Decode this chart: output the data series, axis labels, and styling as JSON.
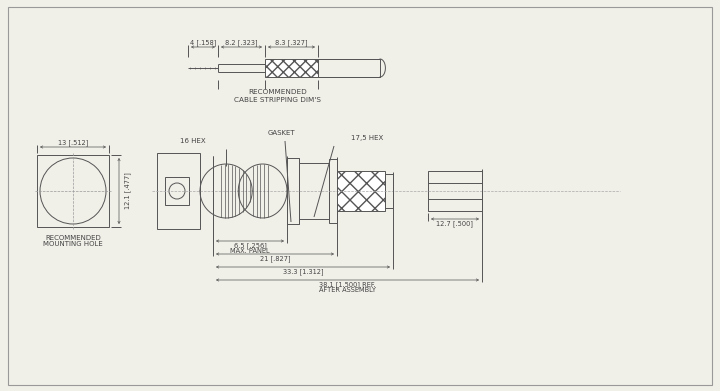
{
  "bg_color": "#f0efe8",
  "line_color": "#555555",
  "text_color": "#444444",
  "border_color": "#aaaaaa",
  "cable_strip": {
    "dim1": "4 [.158]",
    "dim2": "8.2 [.323]",
    "dim3": "8.3 [.327]",
    "label": "RECOMMENDED\nCABLE STRIPPING DIM'S"
  },
  "mount_hole": {
    "dim_w": "13 [.512]",
    "dim_h": "12.1 [.477]",
    "label": "RECOMMENDED\nMOUNTING HOLE"
  },
  "main": {
    "hex16": "16 HEX",
    "gasket": "GASKET",
    "hex175": "17,5 HEX",
    "d1_label": "6.5 [.256]",
    "d1_sub": "MAX. PANEL",
    "d2": "21 [.827]",
    "d3": "33.3 [1.312]",
    "d4a": "38.1 [1.500] REF.",
    "d4b": "AFTER ASSEMBLY",
    "end_dim": "12.7 [.500]"
  }
}
